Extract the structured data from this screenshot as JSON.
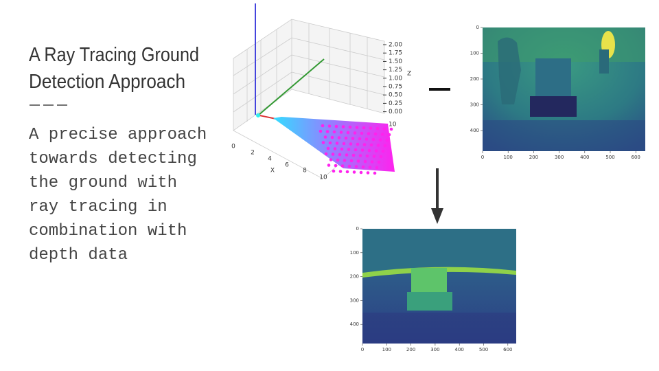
{
  "slide": {
    "title_lines": [
      "A Ray Tracing Ground",
      "Detection Approach"
    ],
    "body_lines": [
      "A precise approach",
      "towards detecting",
      "the ground with",
      "ray tracing in",
      "combination with",
      "depth data"
    ],
    "plot3d": {
      "z_ticks": [
        "2.00",
        "1.75",
        "1.50",
        "1.25",
        "1.00",
        "0.75",
        "0.50",
        "0.25",
        "0.00"
      ],
      "z_label": "Z",
      "x_ticks": [
        "0",
        "2",
        "4",
        "6",
        "8",
        "10"
      ],
      "x_label": "X",
      "y_tick": "10"
    },
    "depth_image": {
      "y_ticks": [
        "0",
        "100",
        "200",
        "300",
        "400"
      ],
      "x_ticks": [
        "0",
        "100",
        "200",
        "300",
        "400",
        "500",
        "600"
      ]
    },
    "ground_image": {
      "y_ticks": [
        "0",
        "100",
        "200",
        "300",
        "400"
      ],
      "x_ticks": [
        "0",
        "100",
        "200",
        "300",
        "400",
        "500",
        "600"
      ]
    }
  }
}
